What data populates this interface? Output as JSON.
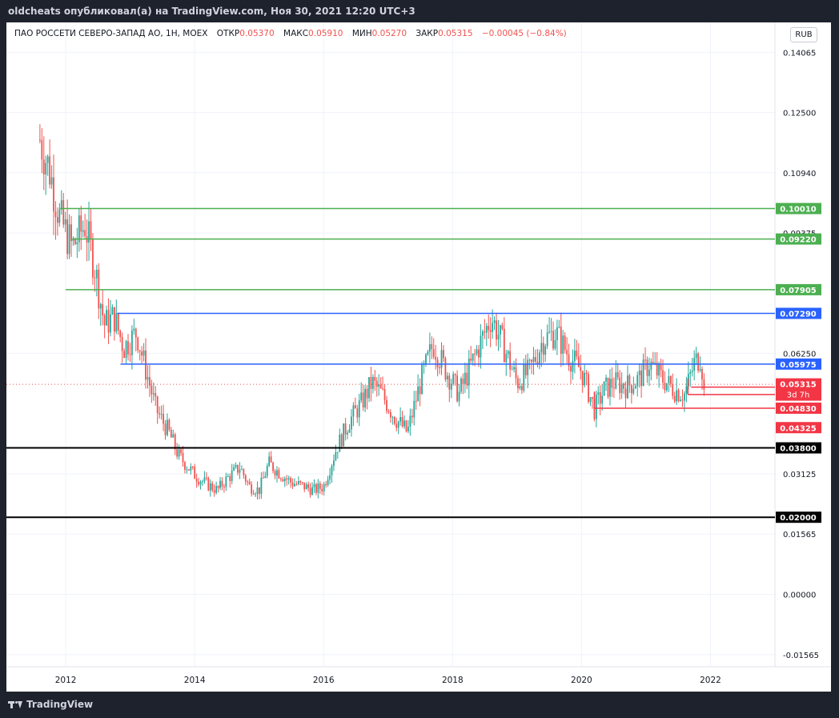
{
  "header": {
    "published_by": "oldcheats опубликовал(а) на TradingView.com, Ноя 30, 2021 12:20 UTC+3"
  },
  "legend": {
    "symbol": "ПАО РОССЕТИ СЕВЕРО-ЗАПАД АО, 1Н, MOEX",
    "open_label": "ОТКР",
    "open_value": "0.05370",
    "high_label": "МАКС",
    "high_value": "0.05910",
    "low_label": "МИН",
    "low_value": "0.05270",
    "close_label": "ЗАКР",
    "close_value": "0.05315",
    "change": "−0.00045 (−0.84%)"
  },
  "currency_button": "RUB",
  "footer": {
    "brand": "TradingView"
  },
  "colors": {
    "up": "#26a69a",
    "down": "#ef5350",
    "green_line": "#4caf50",
    "blue_line": "#2962ff",
    "red_line": "#f23645",
    "black_line": "#000000"
  },
  "chart_data": {
    "type": "candlestick",
    "title": "",
    "xlabel": "",
    "ylabel": "",
    "x_ticks": [
      "2012",
      "2014",
      "2016",
      "2018",
      "2020",
      "2022"
    ],
    "x_range": [
      2011.08,
      2023.0
    ],
    "y_ticks": [
      "0.14065",
      "0.12500",
      "0.10940",
      "0.09375",
      "0.06250",
      "0.03125",
      "0.01565",
      "0.00000",
      "-0.01565"
    ],
    "y_range": [
      -0.0188,
      0.1484
    ],
    "grid": true,
    "horizontal_levels": [
      {
        "label": "0.10010",
        "value": 0.1001,
        "color": "#4caf50",
        "start": 2011.9
      },
      {
        "label": "0.09220",
        "value": 0.0922,
        "color": "#4caf50",
        "start": 2012.1
      },
      {
        "label": "0.07905",
        "value": 0.07905,
        "color": "#4caf50",
        "start": 2012.0
      },
      {
        "label": "0.07290",
        "value": 0.0729,
        "color": "#2962ff",
        "start": 2012.8
      },
      {
        "label": "0.05975",
        "value": 0.05975,
        "color": "#2962ff",
        "start": 2012.85
      },
      {
        "label": "0.05185",
        "value": 0.05185,
        "color": "#f23645",
        "start": 2021.65
      },
      {
        "label": "0.04830",
        "value": 0.0483,
        "color": "#f23645",
        "start": 2020.2
      },
      {
        "label": "0.03800",
        "value": 0.038,
        "color": "#000000",
        "start": 2011.0
      },
      {
        "label": "0.02000",
        "value": 0.02,
        "color": "#000000",
        "start": 2011.0
      }
    ],
    "extra_red_labels": [
      {
        "label": "0.04325",
        "value": 0.04325
      }
    ],
    "last_price": {
      "label": "0.05315",
      "value": 0.05315,
      "countdown": "3d 7h",
      "ref_value": 0.0545
    },
    "series": [
      {
        "x": [
          2011.6,
          2011.75,
          2011.9,
          2012.1,
          2012.3,
          2012.45,
          2012.6,
          2012.75,
          2012.9,
          2013.1,
          2013.2,
          2013.4,
          2013.6,
          2013.75,
          2014.0,
          2014.15,
          2014.35,
          2014.5,
          2014.7,
          2014.85,
          2015.0,
          2015.15,
          2015.35,
          2015.5,
          2015.7,
          2015.85,
          2016.0,
          2016.2,
          2016.4,
          2016.6,
          2016.75,
          2016.9,
          2017.1,
          2017.3,
          2017.5,
          2017.7,
          2017.9,
          2018.1,
          2018.3,
          2018.5,
          2018.6,
          2018.8,
          2019.0,
          2019.2,
          2019.4,
          2019.6,
          2019.8,
          2020.0,
          2020.2,
          2020.35,
          2020.5,
          2020.7,
          2020.9,
          2021.05,
          2021.25,
          2021.45,
          2021.6,
          2021.75,
          2021.85,
          2021.9
        ],
        "close": [
          0.118,
          0.11,
          0.098,
          0.09,
          0.096,
          0.085,
          0.07,
          0.072,
          0.064,
          0.068,
          0.061,
          0.048,
          0.042,
          0.036,
          0.031,
          0.029,
          0.027,
          0.03,
          0.033,
          0.028,
          0.027,
          0.034,
          0.031,
          0.029,
          0.028,
          0.027,
          0.028,
          0.038,
          0.045,
          0.05,
          0.055,
          0.052,
          0.046,
          0.042,
          0.055,
          0.065,
          0.058,
          0.052,
          0.06,
          0.068,
          0.072,
          0.064,
          0.055,
          0.058,
          0.066,
          0.068,
          0.062,
          0.058,
          0.048,
          0.053,
          0.055,
          0.054,
          0.056,
          0.06,
          0.056,
          0.053,
          0.052,
          0.06,
          0.062,
          0.05315
        ]
      }
    ]
  }
}
